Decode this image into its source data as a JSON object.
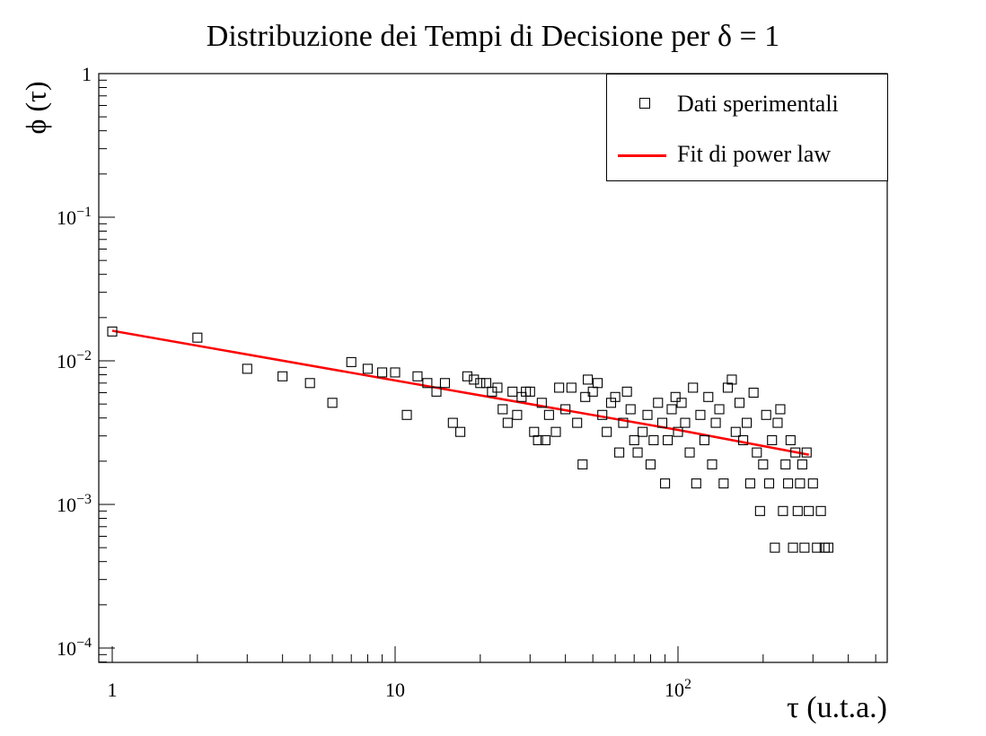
{
  "title": "Distribuzione dei Tempi di Decisione per δ = 1",
  "xlabel": "τ (u.t.a.)",
  "ylabel": "ϕ (τ)",
  "legend": {
    "items": [
      {
        "label": "Dati sperimentali",
        "symbol": "open-square"
      },
      {
        "label": "Fit di power law",
        "symbol": "red-line"
      }
    ]
  },
  "colors": {
    "fit": "#ff0000",
    "markers": "#000000",
    "axes": "#000000"
  },
  "chart_data": {
    "type": "scatter",
    "title": "Distribuzione dei Tempi di Decisione per δ = 1",
    "xlabel": "τ (u.t.a.)",
    "ylabel": "ϕ (τ)",
    "xscale": "log",
    "yscale": "log",
    "xlim": [
      0.95,
      600
    ],
    "ylim": [
      8e-05,
      1
    ],
    "x_tick_labels": [
      "1",
      "10",
      "10^2"
    ],
    "y_tick_labels": [
      "10^-4",
      "10^-3",
      "10^-2",
      "10^-1",
      "1"
    ],
    "grid": false,
    "legend_position": "top-right",
    "series": [
      {
        "name": "Dati sperimentali",
        "marker": "open-square",
        "points": [
          [
            1,
            0.016
          ],
          [
            2,
            0.0145
          ],
          [
            3,
            0.0088
          ],
          [
            4,
            0.0078
          ],
          [
            5,
            0.007
          ],
          [
            6,
            0.0051
          ],
          [
            7,
            0.0098
          ],
          [
            8,
            0.0088
          ],
          [
            9,
            0.0083
          ],
          [
            10,
            0.0083
          ],
          [
            11,
            0.0042
          ],
          [
            12,
            0.0078
          ],
          [
            13,
            0.007
          ],
          [
            14,
            0.0061
          ],
          [
            15,
            0.007
          ],
          [
            16,
            0.0037
          ],
          [
            17,
            0.0032
          ],
          [
            18,
            0.0078
          ],
          [
            19,
            0.0074
          ],
          [
            20,
            0.007
          ],
          [
            21,
            0.007
          ],
          [
            22,
            0.0061
          ],
          [
            23,
            0.0065
          ],
          [
            24,
            0.0046
          ],
          [
            25,
            0.0037
          ],
          [
            26,
            0.0061
          ],
          [
            27,
            0.0042
          ],
          [
            28,
            0.0056
          ],
          [
            29,
            0.0061
          ],
          [
            30,
            0.0061
          ],
          [
            31,
            0.0032
          ],
          [
            32,
            0.0028
          ],
          [
            33,
            0.0051
          ],
          [
            34,
            0.0028
          ],
          [
            35,
            0.0042
          ],
          [
            37,
            0.0032
          ],
          [
            38,
            0.0065
          ],
          [
            40,
            0.0046
          ],
          [
            42,
            0.0065
          ],
          [
            44,
            0.0037
          ],
          [
            46,
            0.0019
          ],
          [
            47,
            0.0056
          ],
          [
            48,
            0.0074
          ],
          [
            50,
            0.0061
          ],
          [
            52,
            0.007
          ],
          [
            54,
            0.0042
          ],
          [
            56,
            0.0032
          ],
          [
            58,
            0.0051
          ],
          [
            60,
            0.0056
          ],
          [
            62,
            0.0023
          ],
          [
            64,
            0.0037
          ],
          [
            66,
            0.0061
          ],
          [
            68,
            0.0046
          ],
          [
            70,
            0.0028
          ],
          [
            72,
            0.0023
          ],
          [
            75,
            0.0032
          ],
          [
            78,
            0.0042
          ],
          [
            80,
            0.0019
          ],
          [
            82,
            0.0028
          ],
          [
            85,
            0.0051
          ],
          [
            88,
            0.0037
          ],
          [
            90,
            0.0014
          ],
          [
            92,
            0.0028
          ],
          [
            95,
            0.0046
          ],
          [
            98,
            0.0056
          ],
          [
            100,
            0.0032
          ],
          [
            103,
            0.0051
          ],
          [
            106,
            0.0037
          ],
          [
            110,
            0.0023
          ],
          [
            113,
            0.0065
          ],
          [
            116,
            0.0014
          ],
          [
            120,
            0.0042
          ],
          [
            124,
            0.0028
          ],
          [
            128,
            0.0056
          ],
          [
            132,
            0.0019
          ],
          [
            136,
            0.0037
          ],
          [
            140,
            0.0046
          ],
          [
            145,
            0.0014
          ],
          [
            150,
            0.0065
          ],
          [
            155,
            0.0074
          ],
          [
            160,
            0.0032
          ],
          [
            165,
            0.0051
          ],
          [
            170,
            0.0028
          ],
          [
            175,
            0.0037
          ],
          [
            180,
            0.0014
          ],
          [
            185,
            0.006
          ],
          [
            190,
            0.0023
          ],
          [
            195,
            0.0009
          ],
          [
            200,
            0.0019
          ],
          [
            205,
            0.0042
          ],
          [
            210,
            0.0014
          ],
          [
            215,
            0.0028
          ],
          [
            220,
            0.0005
          ],
          [
            225,
            0.0037
          ],
          [
            230,
            0.0046
          ],
          [
            235,
            0.0009
          ],
          [
            240,
            0.0019
          ],
          [
            245,
            0.0014
          ],
          [
            250,
            0.0028
          ],
          [
            255,
            0.0005
          ],
          [
            260,
            0.0023
          ],
          [
            265,
            0.0009
          ],
          [
            270,
            0.0014
          ],
          [
            275,
            0.0019
          ],
          [
            280,
            0.0005
          ],
          [
            285,
            0.0023
          ],
          [
            290,
            0.0009
          ],
          [
            300,
            0.0014
          ],
          [
            310,
            0.0005
          ],
          [
            320,
            0.0009
          ],
          [
            330,
            0.0005
          ],
          [
            340,
            0.0005
          ]
        ]
      },
      {
        "name": "Fit di power law",
        "type": "line",
        "color": "#ff0000",
        "points": [
          [
            1,
            0.0162
          ],
          [
            10,
            0.0073
          ],
          [
            100,
            0.0033
          ],
          [
            290,
            0.00222
          ]
        ]
      }
    ]
  }
}
